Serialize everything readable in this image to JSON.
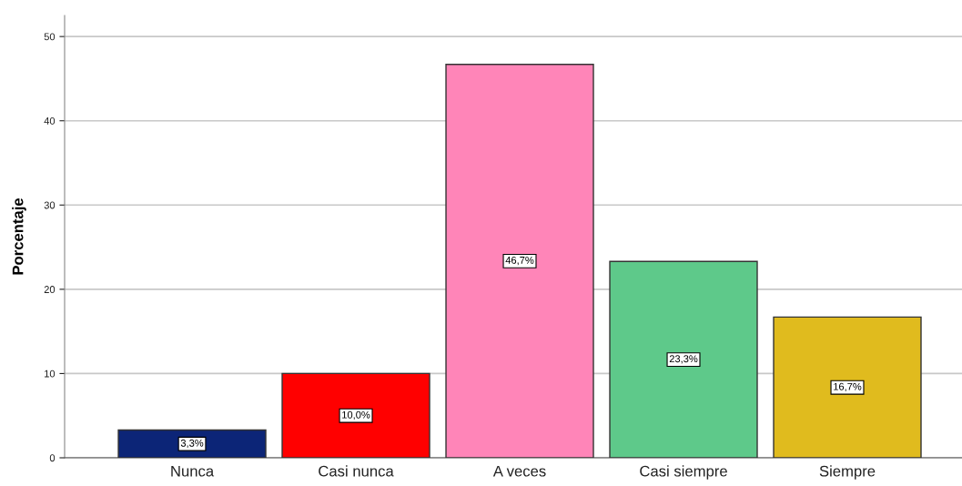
{
  "chart_data": {
    "type": "bar",
    "ylabel": "Porcentaje",
    "categories": [
      "Nunca",
      "Casi nunca",
      "A veces",
      "Casi siempre",
      "Siempre"
    ],
    "values": [
      3.3,
      10.0,
      46.7,
      23.3,
      16.7
    ],
    "colors": [
      "#0c2577",
      "#ff0000",
      "#ff85b8",
      "#5ec98a",
      "#e0bb1e"
    ],
    "value_labels": [
      "3,3%",
      "10,0%",
      "46,7%",
      "23,3%",
      "16,7%"
    ],
    "ylim": [
      0,
      52.5
    ],
    "yticks": [
      0,
      10,
      20,
      30,
      40,
      50
    ],
    "grid": "y"
  }
}
